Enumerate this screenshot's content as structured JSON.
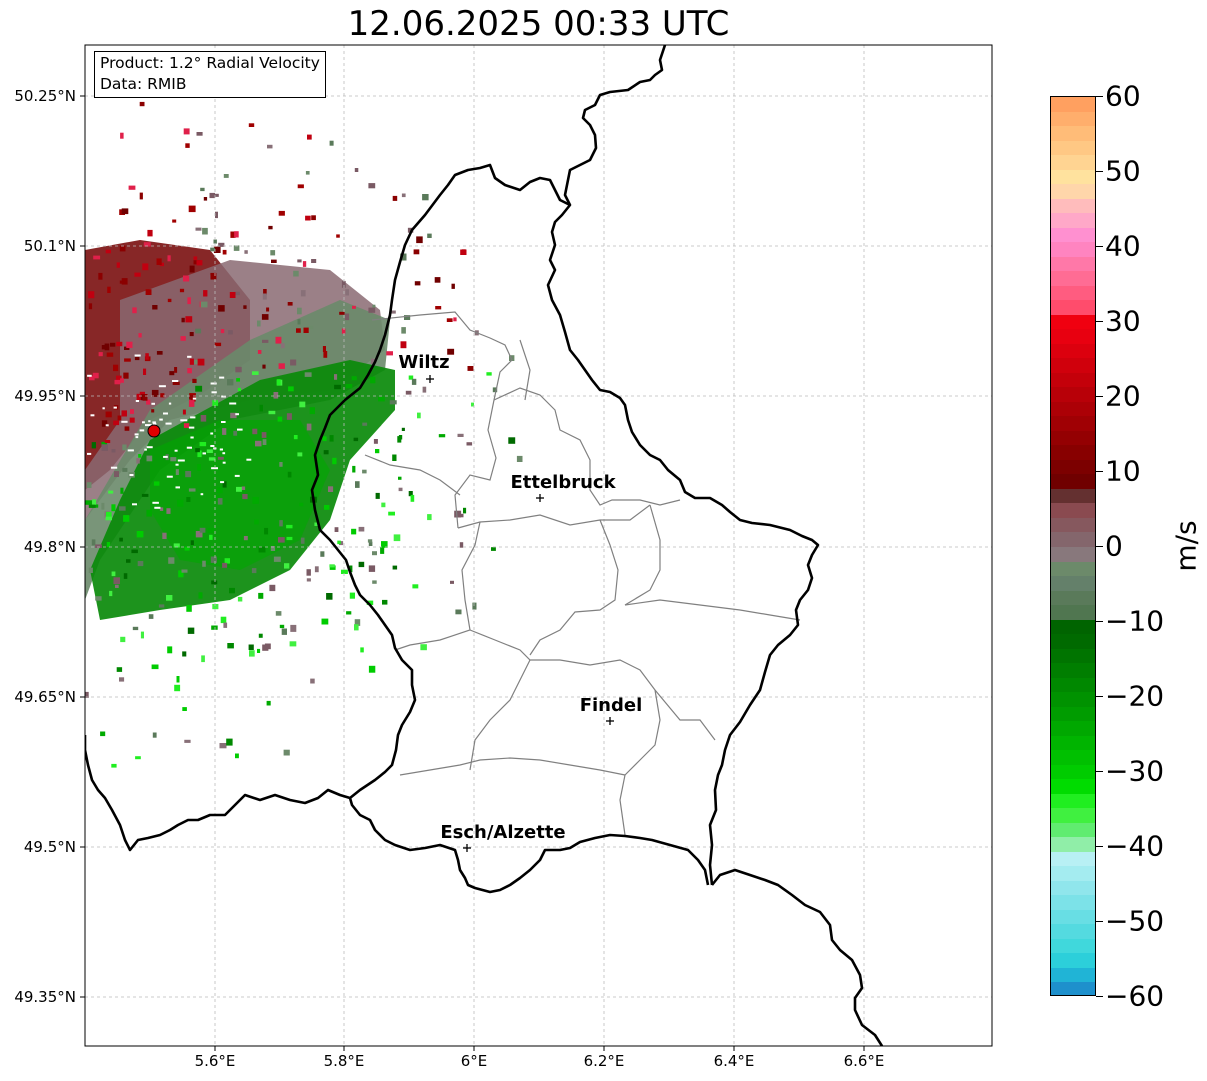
{
  "title": "12.06.2025 00:33 UTC",
  "info": {
    "product": "Product: 1.2° Radial Velocity",
    "source": "Data: RMIB"
  },
  "lat_ticks": [
    "50.25°N",
    "50.1°N",
    "49.95°N",
    "49.8°N",
    "49.65°N",
    "49.5°N",
    "49.35°N"
  ],
  "lon_ticks": [
    "5.6°E",
    "5.8°E",
    "6°E",
    "6.2°E",
    "6.4°E",
    "6.6°E"
  ],
  "cities": [
    {
      "name": "Wiltz"
    },
    {
      "name": "Ettelbruck"
    },
    {
      "name": "Findel"
    },
    {
      "name": "Esch/Alzette"
    }
  ],
  "colorbar": {
    "unit": "m/s",
    "min": -60,
    "max": 60,
    "ticks": [
      "60",
      "50",
      "40",
      "30",
      "20",
      "10",
      "0",
      "−10",
      "−20",
      "−30",
      "−40",
      "−50",
      "−60"
    ],
    "colors_top_to_bottom": [
      "#ffa060",
      "#ffae6c",
      "#ffbc78",
      "#ffc884",
      "#ffd492",
      "#ffe29e",
      "#ffd6aa",
      "#ffbcbc",
      "#ffa8c8",
      "#ff90d0",
      "#ff84c0",
      "#ff78a8",
      "#ff6c94",
      "#ff5c80",
      "#ff4c6c",
      "#f00010",
      "#e80010",
      "#dc000e",
      "#d0000c",
      "#c4000a",
      "#b80008",
      "#ac0006",
      "#a00004",
      "#940002",
      "#880000",
      "#7c0000",
      "#700000",
      "#643030",
      "#8a4a50",
      "#86585e",
      "#84666c",
      "#88787c",
      "#6c8a6a",
      "#64806a",
      "#5a7a5a",
      "#507650",
      "#006400",
      "#006a00",
      "#007400",
      "#007e00",
      "#008800",
      "#009200",
      "#009c00",
      "#00a800",
      "#00b400",
      "#00c000",
      "#00cc00",
      "#00dc00",
      "#20ee20",
      "#40f040",
      "#60ec70",
      "#90eea8",
      "#b8f0f4",
      "#a4ecf0",
      "#90e6ec",
      "#7ce2e8",
      "#68dee4",
      "#54dae0",
      "#40d8dc",
      "#2ccfda",
      "#20b4d6",
      "#1e90cc"
    ]
  },
  "radar_site": {
    "color": "#e00000"
  },
  "colors": {
    "border": "#000000",
    "canton": "#808080",
    "grid": "#bbbbbb"
  }
}
